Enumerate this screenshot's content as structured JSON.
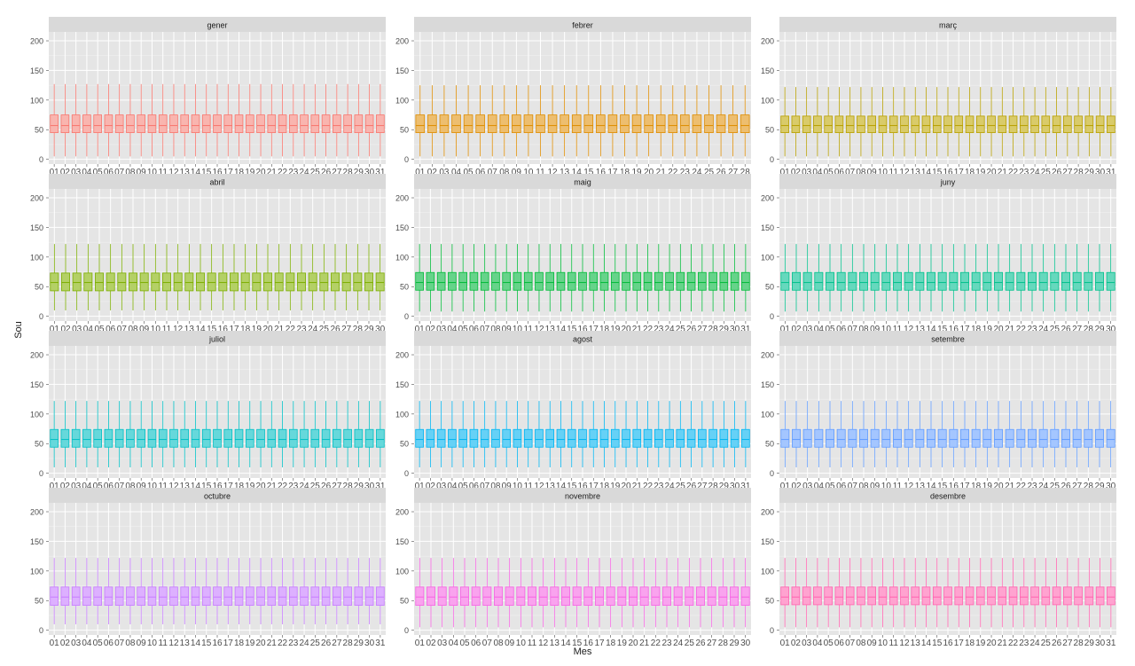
{
  "chart_data": {
    "type": "boxplot",
    "xlabel": "Mes",
    "ylabel": "Sou",
    "ylim": [
      -8,
      215
    ],
    "y_ticks": [
      0,
      50,
      100,
      150,
      200
    ],
    "facets": [
      {
        "title": "gener",
        "days": 31,
        "color": "#F8766D",
        "fill": "#F9B5AF",
        "stats": {
          "min": 5,
          "q1": 45,
          "median": 57,
          "q3": 75,
          "max": 127
        }
      },
      {
        "title": "febrer",
        "days": 28,
        "color": "#DE8C00",
        "fill": "#EDBE6F",
        "stats": {
          "min": 5,
          "q1": 45,
          "median": 57,
          "q3": 75,
          "max": 125
        }
      },
      {
        "title": "març",
        "days": 31,
        "color": "#B79F00",
        "fill": "#D9CB6A",
        "stats": {
          "min": 5,
          "q1": 45,
          "median": 57,
          "q3": 73,
          "max": 122
        }
      },
      {
        "title": "abril",
        "days": 30,
        "color": "#7CAE00",
        "fill": "#B4D066",
        "stats": {
          "min": 10,
          "q1": 43,
          "median": 57,
          "q3": 73,
          "max": 122
        }
      },
      {
        "title": "maig",
        "days": 31,
        "color": "#00BA38",
        "fill": "#66D38A",
        "stats": {
          "min": 8,
          "q1": 44,
          "median": 57,
          "q3": 74,
          "max": 122
        }
      },
      {
        "title": "juny",
        "days": 30,
        "color": "#00C08B",
        "fill": "#66D8BD",
        "stats": {
          "min": 8,
          "q1": 44,
          "median": 57,
          "q3": 74,
          "max": 122
        }
      },
      {
        "title": "juliol",
        "days": 31,
        "color": "#00BFC4",
        "fill": "#66D8DB",
        "stats": {
          "min": 10,
          "q1": 44,
          "median": 57,
          "q3": 74,
          "max": 122
        }
      },
      {
        "title": "agost",
        "days": 31,
        "color": "#00B4F0",
        "fill": "#66D1F6",
        "stats": {
          "min": 10,
          "q1": 44,
          "median": 57,
          "q3": 74,
          "max": 122
        }
      },
      {
        "title": "setembre",
        "days": 30,
        "color": "#619CFF",
        "fill": "#A4C6FF",
        "stats": {
          "min": 10,
          "q1": 44,
          "median": 57,
          "q3": 74,
          "max": 122
        }
      },
      {
        "title": "octubre",
        "days": 31,
        "color": "#C77CFF",
        "fill": "#DDB0FF",
        "stats": {
          "min": 10,
          "q1": 42,
          "median": 56,
          "q3": 73,
          "max": 122
        }
      },
      {
        "title": "novembre",
        "days": 30,
        "color": "#F564E3",
        "fill": "#F9A3EE",
        "stats": {
          "min": 5,
          "q1": 42,
          "median": 56,
          "q3": 73,
          "max": 122
        }
      },
      {
        "title": "desembre",
        "days": 31,
        "color": "#FF64B0",
        "fill": "#FFA3D0",
        "stats": {
          "min": 5,
          "q1": 43,
          "median": 56,
          "q3": 73,
          "max": 122
        }
      }
    ]
  }
}
